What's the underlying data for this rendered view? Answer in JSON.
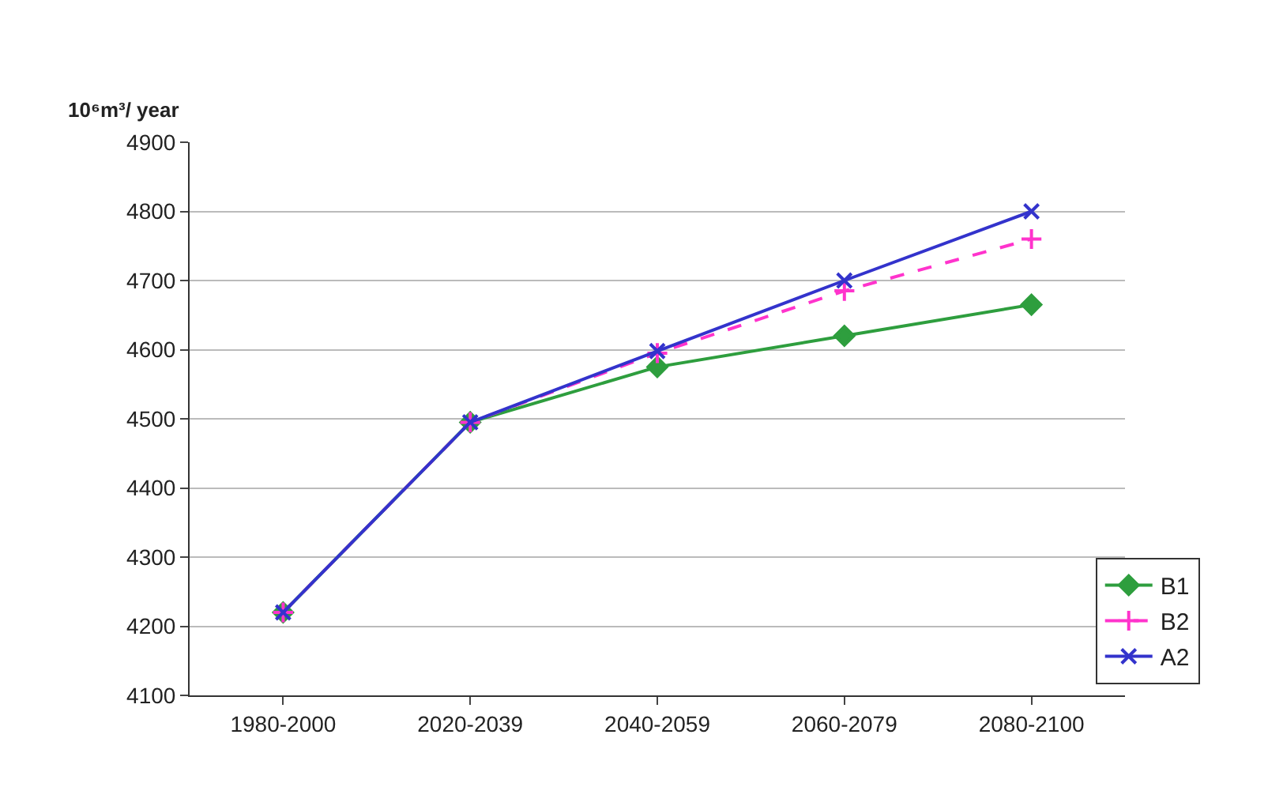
{
  "chart_data": {
    "type": "line",
    "ylabel": "10⁶m³/ year",
    "categories": [
      "1980-2000",
      "2020-2039",
      "2040-2059",
      "2060-2079",
      "2080-2100"
    ],
    "series": [
      {
        "name": "B1",
        "color": "#2e9e3e",
        "marker": "diamond",
        "line_style": "solid",
        "values": [
          4220,
          4495,
          4575,
          4620,
          4665
        ]
      },
      {
        "name": "B2",
        "color": "#ff33cc",
        "marker": "cross",
        "line_style": "dashed",
        "values": [
          4220,
          4495,
          4595,
          4685,
          4760
        ]
      },
      {
        "name": "A2",
        "color": "#3333cc",
        "marker": "x",
        "line_style": "solid",
        "values": [
          4220,
          4495,
          4598,
          4700,
          4800
        ]
      }
    ],
    "ylim": [
      4100,
      4900
    ],
    "yticks": [
      4100,
      4200,
      4300,
      4400,
      4500,
      4600,
      4700,
      4800,
      4900
    ],
    "grid": "y",
    "legend": "bottom right"
  }
}
